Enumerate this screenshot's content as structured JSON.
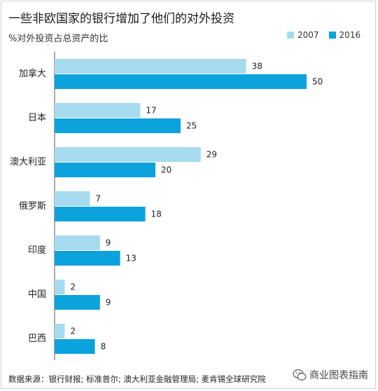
{
  "chart_data": {
    "type": "bar",
    "orientation": "horizontal",
    "title": "一些非欧国家的银行增加了他们的对外投资",
    "subtitle": "%对外投资占总资产的比",
    "categories": [
      "加拿大",
      "日本",
      "澳大利亚",
      "俄罗斯",
      "印度",
      "中国",
      "巴西"
    ],
    "series": [
      {
        "name": "2007",
        "color": "#a6dbef",
        "values": [
          38,
          17,
          29,
          7,
          9,
          2,
          2
        ]
      },
      {
        "name": "2016",
        "color": "#0ca2dc",
        "values": [
          50,
          25,
          20,
          18,
          13,
          9,
          8
        ]
      }
    ],
    "xlim": [
      0,
      55
    ],
    "legend_position": "top-right",
    "grid": false
  },
  "footer": {
    "source": "数据来源：银行财报; 标准普尔; 澳大利亚金融管理局; 麦肯锡全球研究院",
    "brand": "商业图表指南",
    "brand_icon": "wechat-icon"
  }
}
